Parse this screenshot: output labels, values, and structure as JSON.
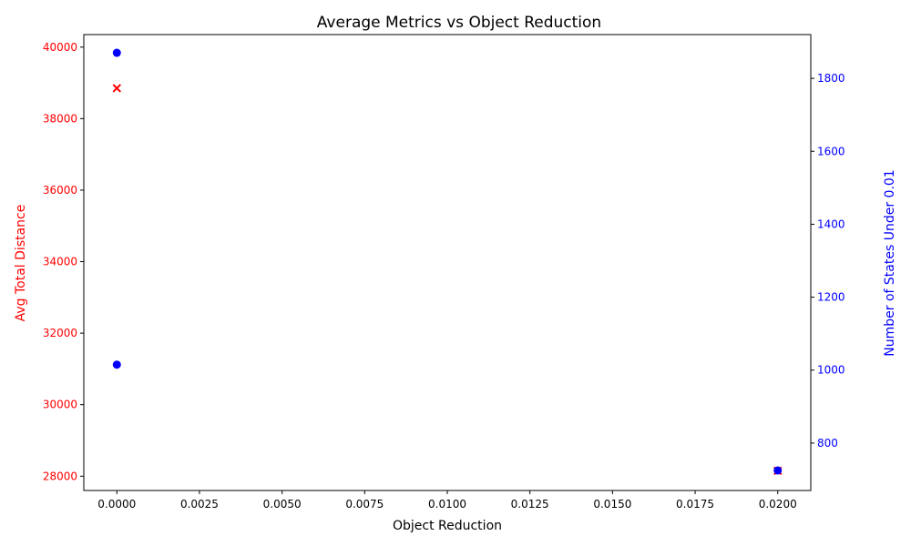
{
  "chart_data": {
    "type": "scatter",
    "title": "Average Metrics vs Object Reduction",
    "xlabel": "Object Reduction",
    "ylabel_left": "Avg Total Distance",
    "ylabel_right": "Number of States Under 0.01",
    "xlim": [
      -0.001,
      0.021
    ],
    "ylim_left": [
      27600,
      40350
    ],
    "ylim_right": [
      670,
      1920
    ],
    "x_ticks": [
      0.0,
      0.0025,
      0.005,
      0.0075,
      0.01,
      0.0125,
      0.015,
      0.0175,
      0.02
    ],
    "x_tick_labels": [
      "0.0000",
      "0.0025",
      "0.0050",
      "0.0075",
      "0.0100",
      "0.0125",
      "0.0150",
      "0.0175",
      "0.0200"
    ],
    "y_left_ticks": [
      28000,
      30000,
      32000,
      34000,
      36000,
      38000,
      40000
    ],
    "y_left_tick_labels": [
      "28000",
      "30000",
      "32000",
      "34000",
      "36000",
      "38000",
      "40000"
    ],
    "y_right_ticks": [
      800,
      1000,
      1200,
      1400,
      1600,
      1800
    ],
    "y_right_tick_labels": [
      "800",
      "1000",
      "1200",
      "1400",
      "1600",
      "1800"
    ],
    "grid": false,
    "series": [
      {
        "axis": "left",
        "marker": "x",
        "color": "#ff0000",
        "points": [
          {
            "x": 0.0,
            "y": 38850
          },
          {
            "x": 0.02,
            "y": 28150
          }
        ]
      },
      {
        "axis": "right",
        "marker": "o",
        "color": "#0000ff",
        "points": [
          {
            "x": 0.0,
            "y": 1870
          },
          {
            "x": 0.0,
            "y": 1015
          },
          {
            "x": 0.02,
            "y": 725
          }
        ]
      }
    ]
  }
}
